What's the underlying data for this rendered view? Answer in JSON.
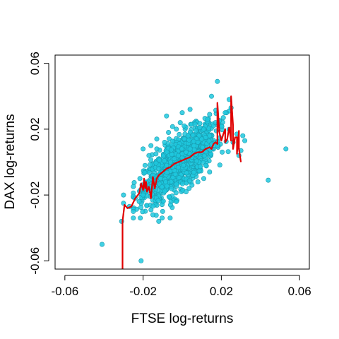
{
  "chart_data": {
    "type": "scatter",
    "title": "",
    "xlabel": "FTSE log-returns",
    "ylabel": "DAX log-returns",
    "xlim": [
      -0.065,
      0.065
    ],
    "ylim": [
      -0.065,
      0.065
    ],
    "x_ticks": [
      -0.06,
      -0.02,
      0.02,
      0.06
    ],
    "x_tick_labels": [
      "-0.06",
      "-0.02",
      "0.02",
      "0.06"
    ],
    "y_ticks": [
      -0.06,
      -0.02,
      0.02,
      0.06
    ],
    "y_tick_labels": [
      "-0.06",
      "-0.02",
      "0.02",
      "0.06"
    ],
    "grid": false,
    "legend": "none",
    "colors": {
      "points": "#1FC8DE",
      "points_edge": "#1A9CB0",
      "line": "#E00000",
      "axis": "#000000"
    },
    "series": [
      {
        "kind": "points",
        "x": [
          0.053,
          0.044,
          0.032,
          0.031,
          0.028,
          0.029,
          0.026,
          0.018,
          -0.041,
          -0.031,
          -0.021,
          -0.027,
          -0.03,
          -0.03,
          0.03,
          0.025,
          0.024,
          0.015,
          -0.012,
          -0.008,
          -0.006,
          -0.004,
          -0.002,
          0.0,
          0.002,
          0.004,
          0.006,
          0.008,
          0.01,
          0.012,
          0.014,
          -0.015,
          -0.01,
          -0.005,
          0.005,
          0.01,
          -0.013,
          -0.009,
          0.003,
          0.011,
          -0.016,
          -0.018,
          -0.02,
          -0.022,
          -0.014,
          -0.011,
          -0.019,
          -0.017,
          0.016,
          0.019,
          0.021,
          0.022,
          0.013,
          0.017,
          -0.007,
          -0.003,
          0.001,
          0.007,
          0.009,
          -0.001,
          -0.024,
          -0.025,
          -0.012,
          -0.015,
          -0.01,
          -0.006,
          -0.003,
          0.002,
          0.005,
          0.008,
          0.011,
          0.014,
          -0.008,
          0.0,
          0.004,
          -0.013,
          0.012,
          0.018,
          -0.02,
          -0.016
        ],
        "y": [
          0.008,
          -0.011,
          0.013,
          0.016,
          0.017,
          0.004,
          0.012,
          0.049,
          -0.05,
          -0.036,
          -0.06,
          -0.027,
          -0.025,
          -0.02,
          0.007,
          0.033,
          0.038,
          0.04,
          -0.004,
          -0.002,
          0.0,
          0.002,
          0.004,
          0.005,
          0.006,
          0.008,
          0.01,
          0.012,
          0.014,
          0.015,
          0.016,
          -0.008,
          -0.006,
          -0.003,
          0.003,
          0.006,
          0.008,
          0.012,
          0.016,
          0.02,
          -0.015,
          -0.018,
          -0.02,
          -0.024,
          -0.012,
          -0.01,
          -0.002,
          0.004,
          0.022,
          0.025,
          0.027,
          0.03,
          0.026,
          0.024,
          0.018,
          0.02,
          0.022,
          0.019,
          0.021,
          0.024,
          -0.022,
          -0.03,
          -0.036,
          -0.032,
          -0.03,
          -0.026,
          -0.024,
          -0.018,
          -0.014,
          -0.012,
          -0.01,
          -0.006,
          0.028,
          0.03,
          0.032,
          0.014,
          -0.002,
          0.01,
          0.008,
          0.01
        ],
        "cloud": {
          "n": 1100,
          "center": [
            -0.001,
            0.0
          ],
          "sd": [
            0.009,
            0.011
          ],
          "correlation": 0.72
        }
      },
      {
        "kind": "line",
        "description": "local median regression",
        "x": [
          -0.0305,
          -0.0305,
          -0.0295,
          -0.028,
          -0.026,
          -0.024,
          -0.022,
          -0.021,
          -0.02,
          -0.0195,
          -0.019,
          -0.0185,
          -0.018,
          -0.017,
          -0.016,
          -0.015,
          -0.014,
          -0.013,
          -0.012,
          -0.01,
          -0.008,
          -0.006,
          -0.004,
          -0.002,
          0.0,
          0.002,
          0.004,
          0.006,
          0.008,
          0.01,
          0.012,
          0.014,
          0.015,
          0.016,
          0.017,
          0.018,
          0.018,
          0.019,
          0.02,
          0.021,
          0.022,
          0.022,
          0.023,
          0.024,
          0.025,
          0.025,
          0.026,
          0.026,
          0.027,
          0.028,
          0.028,
          0.029,
          0.029,
          0.03
        ],
        "y": [
          -0.065,
          -0.036,
          -0.026,
          -0.028,
          -0.027,
          -0.022,
          -0.019,
          -0.013,
          -0.017,
          -0.01,
          -0.016,
          -0.012,
          -0.018,
          -0.015,
          -0.022,
          -0.009,
          -0.016,
          -0.01,
          -0.008,
          -0.006,
          -0.004,
          -0.003,
          -0.001,
          0.0,
          0.001,
          0.002,
          0.003,
          0.005,
          0.006,
          0.006,
          0.008,
          0.009,
          0.008,
          0.011,
          0.012,
          0.011,
          0.036,
          0.018,
          0.013,
          0.017,
          0.02,
          0.012,
          0.014,
          0.021,
          0.013,
          0.04,
          0.022,
          0.008,
          0.015,
          0.015,
          0.005,
          0.019,
          0.008,
          0.0
        ]
      }
    ]
  }
}
